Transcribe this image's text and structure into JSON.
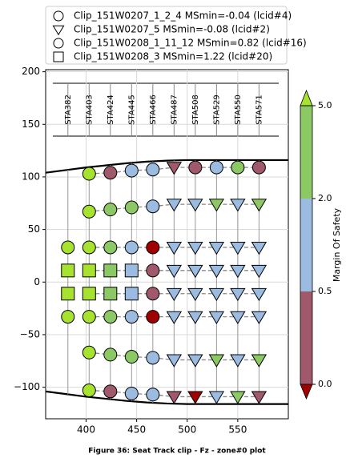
{
  "chart_data": {
    "type": "scatter",
    "xlim": [
      360,
      600
    ],
    "ylim": [
      -130,
      202
    ],
    "xticks": [
      400,
      450,
      500,
      550
    ],
    "yticks": [
      {
        "value": -100,
        "label": "−100"
      },
      {
        "value": -50,
        "label": "−50"
      },
      0,
      50,
      100,
      150,
      200
    ],
    "grid": true,
    "stations": {
      "labels": [
        "STA382",
        "STA403",
        "STA424",
        "STA445",
        "STA466",
        "STA487",
        "STA508",
        "STA529",
        "STA550",
        "STA571"
      ],
      "x": [
        382,
        403,
        424,
        445,
        466,
        487,
        508,
        529,
        550,
        571
      ]
    },
    "envelope": {
      "x": [
        360,
        380,
        400,
        420,
        440,
        460,
        480,
        500,
        600
      ],
      "upper": [
        104,
        106.5,
        109,
        111,
        113,
        114.5,
        115.5,
        116,
        116
      ],
      "lower": [
        -104,
        -106.5,
        -109,
        -111,
        -113,
        -114.5,
        -115.5,
        -116,
        -116
      ]
    },
    "series": [
      {
        "name": "Clip_151W0207_1_2_4 MSmin=-0.04 (lcid#4)",
        "marker": "circle",
        "x": [
          403,
          403,
          403,
          403,
          424,
          424,
          424,
          424,
          445,
          445,
          445,
          445,
          466,
          466,
          466,
          466,
          466,
          466,
          508,
          529,
          550,
          571
        ],
        "y": [
          103,
          67,
          -67,
          -103,
          104,
          69,
          -69,
          -104,
          106,
          71,
          -71,
          -106,
          107,
          72,
          11,
          -11,
          -72,
          -107,
          109,
          109,
          109,
          109
        ],
        "colors": [
          "#a6e22e",
          "#a6e22e",
          "#a6e22e",
          "#a6e22e",
          "#a0586b",
          "#8cc864",
          "#8cc864",
          "#a0586b",
          "#9bbbe0",
          "#8cc864",
          "#8cc864",
          "#9bbbe0",
          "#9bbbe0",
          "#9bbbe0",
          "#a0586b",
          "#a0586b",
          "#9bbbe0",
          "#9bbbe0",
          "#a0586b",
          "#9bbbe0",
          "#8cc864",
          "#a0586b"
        ]
      },
      {
        "name": "Clip_151W0207_5 MSmin=-0.08 (lcid#2)",
        "marker": "triangle",
        "x": [
          487,
          487,
          487,
          487,
          487,
          487,
          487,
          487,
          508,
          508,
          508,
          508,
          508,
          508,
          508,
          529,
          529,
          529,
          529,
          529,
          529,
          529,
          550,
          550,
          550,
          550,
          550,
          550,
          550,
          571,
          571,
          571,
          571,
          571,
          571,
          571
        ],
        "y": [
          109,
          74,
          33,
          11,
          -11,
          -33,
          -74,
          -109,
          74,
          33,
          11,
          -11,
          -33,
          -74,
          -109,
          74,
          33,
          11,
          -11,
          -33,
          -74,
          -109,
          74,
          33,
          11,
          -11,
          -33,
          -74,
          -109,
          74,
          33,
          11,
          -11,
          -33,
          -74,
          -109
        ],
        "colors": [
          "#a0586b",
          "#9bbbe0",
          "#9bbbe0",
          "#9bbbe0",
          "#9bbbe0",
          "#9bbbe0",
          "#9bbbe0",
          "#a0586b",
          "#9bbbe0",
          "#9bbbe0",
          "#9bbbe0",
          "#9bbbe0",
          "#9bbbe0",
          "#9bbbe0",
          "#a00000",
          "#8cc864",
          "#9bbbe0",
          "#9bbbe0",
          "#9bbbe0",
          "#9bbbe0",
          "#8cc864",
          "#9bbbe0",
          "#9bbbe0",
          "#9bbbe0",
          "#9bbbe0",
          "#9bbbe0",
          "#9bbbe0",
          "#9bbbe0",
          "#8cc864",
          "#8cc864",
          "#9bbbe0",
          "#9bbbe0",
          "#9bbbe0",
          "#9bbbe0",
          "#8cc864",
          "#a0586b"
        ]
      },
      {
        "name": "Clip_151W0208_1_11_12 MSmin=0.82 (lcid#16)",
        "marker": "circle",
        "x": [
          382,
          382,
          403,
          403,
          424,
          424,
          445,
          445,
          466,
          466
        ],
        "y": [
          33,
          -33,
          33,
          -33,
          33,
          -33,
          33,
          -33,
          33,
          -33
        ],
        "colors": [
          "#a6e22e",
          "#a6e22e",
          "#a6e22e",
          "#a6e22e",
          "#8cc864",
          "#8cc864",
          "#9bbbe0",
          "#9bbbe0",
          "#a00000",
          "#a00000"
        ]
      },
      {
        "name": "Clip_151W0208_3 MSmin=1.22 (lcid#20)",
        "marker": "square",
        "x": [
          382,
          382,
          403,
          403,
          424,
          424,
          445,
          445
        ],
        "y": [
          11,
          -11,
          11,
          -11,
          11,
          -11,
          11,
          -11
        ],
        "colors": [
          "#a6e22e",
          "#a6e22e",
          "#a6e22e",
          "#a6e22e",
          "#8cc864",
          "#8cc864",
          "#9bbbe0",
          "#9bbbe0"
        ]
      }
    ],
    "colorbar": {
      "label": "Margin Of Safety",
      "ticks": [
        {
          "value": 0,
          "label": "0.0"
        },
        {
          "value": 0.5,
          "label": "0.5"
        },
        {
          "value": 2,
          "label": "2.0"
        },
        {
          "value": 5,
          "label": "5.0"
        }
      ],
      "colors": [
        "#a0586b",
        "#9bbbe0",
        "#8cc864"
      ],
      "under": "#a00000",
      "over": "#a6e22e"
    },
    "caption": "Figure 36: Seat Track clip - Fz - zone#0 plot"
  }
}
